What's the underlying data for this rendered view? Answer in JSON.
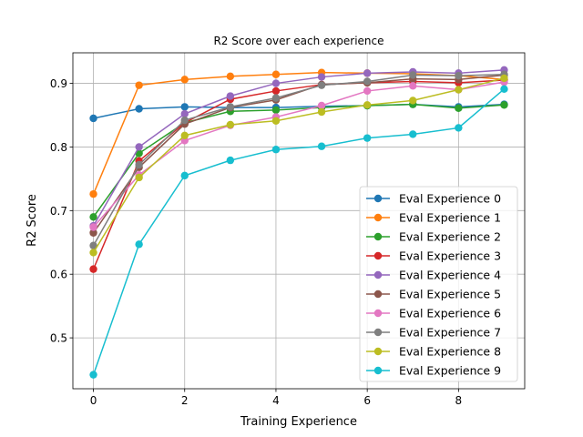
{
  "chart_data": {
    "type": "line",
    "title": "R2 Score over each experience",
    "xlabel": "Training Experience",
    "ylabel": "R2 Score",
    "xlim": [
      -0.45,
      9.45
    ],
    "ylim": [
      0.42,
      0.948
    ],
    "xticks": [
      0,
      2,
      4,
      6,
      8
    ],
    "xtick_labels": [
      "0",
      "2",
      "4",
      "6",
      "8"
    ],
    "yticks": [
      0.5,
      0.6,
      0.7,
      0.8,
      0.9
    ],
    "ytick_labels": [
      "0.5",
      "0.6",
      "0.7",
      "0.8",
      "0.9"
    ],
    "grid": true,
    "legend_position": "lower-right",
    "x": [
      0,
      1,
      2,
      3,
      4,
      5,
      6,
      7,
      8,
      9
    ],
    "series": [
      {
        "name": "Eval Experience 0",
        "color": "#1f77b4",
        "values": [
          0.845,
          0.86,
          0.863,
          0.862,
          0.862,
          0.864,
          0.865,
          0.867,
          0.863,
          0.867
        ]
      },
      {
        "name": "Eval Experience 1",
        "color": "#ff7f0e",
        "values": [
          0.726,
          0.897,
          0.906,
          0.911,
          0.914,
          0.917,
          0.916,
          0.915,
          0.912,
          0.906
        ]
      },
      {
        "name": "Eval Experience 2",
        "color": "#2ca02c",
        "values": [
          0.69,
          0.79,
          0.838,
          0.856,
          0.858,
          0.862,
          0.865,
          0.867,
          0.861,
          0.866
        ]
      },
      {
        "name": "Eval Experience 3",
        "color": "#d62728",
        "values": [
          0.608,
          0.778,
          0.838,
          0.875,
          0.888,
          0.898,
          0.901,
          0.903,
          0.901,
          0.905
        ]
      },
      {
        "name": "Eval Experience 4",
        "color": "#9467bd",
        "values": [
          0.676,
          0.8,
          0.852,
          0.88,
          0.9,
          0.91,
          0.916,
          0.918,
          0.916,
          0.921
        ]
      },
      {
        "name": "Eval Experience 5",
        "color": "#8c564b",
        "values": [
          0.665,
          0.768,
          0.836,
          0.862,
          0.874,
          0.898,
          0.901,
          0.907,
          0.906,
          0.913
        ]
      },
      {
        "name": "Eval Experience 6",
        "color": "#e377c2",
        "values": [
          0.674,
          0.756,
          0.81,
          0.834,
          0.847,
          0.865,
          0.888,
          0.896,
          0.89,
          0.902
        ]
      },
      {
        "name": "Eval Experience 7",
        "color": "#7f7f7f",
        "values": [
          0.645,
          0.772,
          0.842,
          0.863,
          0.877,
          0.897,
          0.903,
          0.913,
          0.912,
          0.914
        ]
      },
      {
        "name": "Eval Experience 8",
        "color": "#bcbd22",
        "values": [
          0.634,
          0.752,
          0.818,
          0.835,
          0.841,
          0.855,
          0.866,
          0.873,
          0.89,
          0.908
        ]
      },
      {
        "name": "Eval Experience 9",
        "color": "#17becf",
        "values": [
          0.442,
          0.647,
          0.755,
          0.779,
          0.796,
          0.801,
          0.814,
          0.82,
          0.83,
          0.891
        ]
      }
    ]
  }
}
